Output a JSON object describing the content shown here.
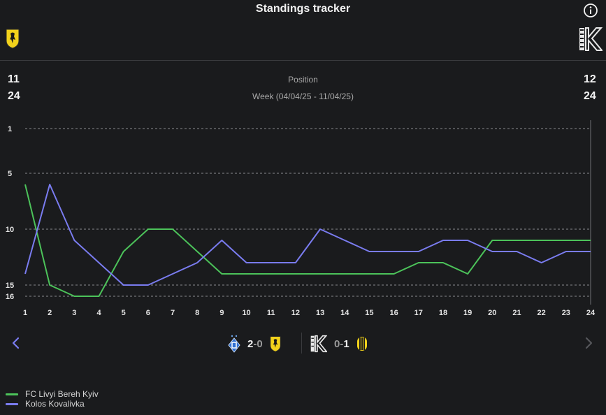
{
  "header": {
    "title": "Standings tracker"
  },
  "teams": {
    "home": {
      "name": "FC Livyi Bereh Kyiv",
      "color": "#4cc35a",
      "position": "11",
      "total": "24"
    },
    "away": {
      "name": "Kolos Kovalivka",
      "color": "#7a7cf0",
      "position": "12",
      "total": "24"
    }
  },
  "labels": {
    "metric": "Position",
    "week": "Week (04/04/25 - 11/04/25)"
  },
  "matches": [
    {
      "home_score": "2",
      "separator": "-",
      "away_score": "0",
      "home_logo": "dynamo-kyiv-logo",
      "away_logo": "livyi-bereh-logo"
    },
    {
      "home_score": "0",
      "separator": "-",
      "away_score": "1",
      "home_logo": "kolos-logo",
      "away_logo": "rukh-logo"
    }
  ],
  "chart_data": {
    "type": "line",
    "x": [
      1,
      2,
      3,
      4,
      5,
      6,
      7,
      8,
      9,
      10,
      11,
      12,
      13,
      14,
      15,
      16,
      17,
      18,
      19,
      20,
      21,
      22,
      23,
      24
    ],
    "y_ticks": [
      1,
      5,
      10,
      15,
      16
    ],
    "ylim": [
      1,
      16
    ],
    "y_inverted": true,
    "grid": "horizontal-dashed",
    "legend_placement": "bottom-left",
    "series": [
      {
        "name": "FC Livyi Bereh Kyiv",
        "color": "#4cc35a",
        "values": [
          6,
          15,
          16,
          16,
          12,
          10,
          10,
          12,
          14,
          14,
          14,
          14,
          14,
          14,
          14,
          14,
          13,
          13,
          14,
          11,
          11,
          11,
          11,
          11
        ]
      },
      {
        "name": "Kolos Kovalivka",
        "color": "#7a7cf0",
        "values": [
          14,
          6,
          11,
          13,
          15,
          15,
          14,
          13,
          11,
          13,
          13,
          13,
          10,
          11,
          12,
          12,
          12,
          11,
          11,
          12,
          12,
          13,
          12,
          12
        ]
      }
    ]
  }
}
